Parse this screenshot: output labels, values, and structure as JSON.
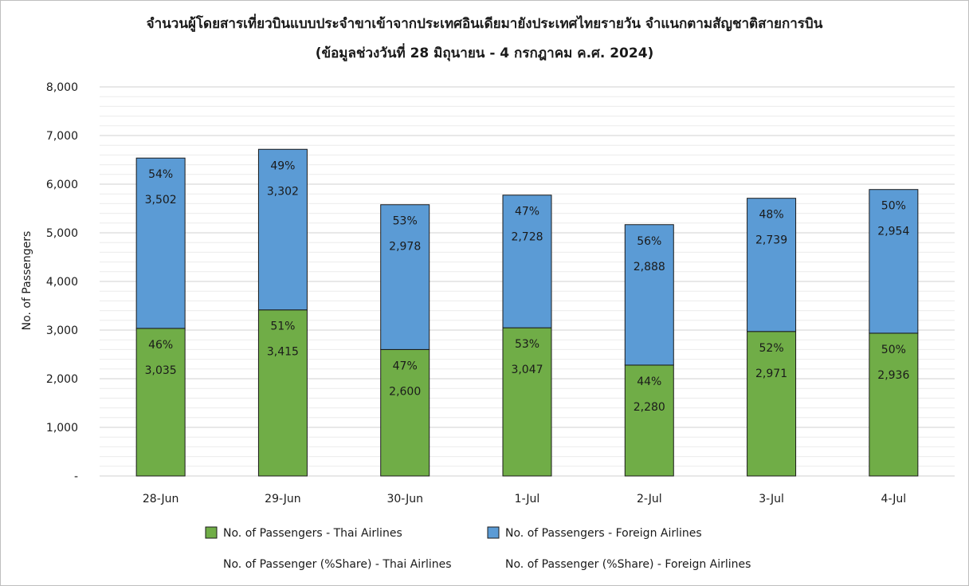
{
  "chart_data": {
    "type": "bar",
    "stacked": true,
    "title": "จำนวนผู้โดยสารเที่ยวบินแบบประจำขาเข้าจากประเทศอินเดียมายังประเทศไทยรายวัน  จำแนกตามสัญชาติสายการบิน",
    "subtitle": "(ข้อมูลช่วงวันที่ 28 มิถุนายน - 4 กรกฎาคม ค.ศ. 2024)",
    "ylabel": "No. of Passengers",
    "xlabel": "",
    "ylim": [
      0,
      8000
    ],
    "yticks": [
      0,
      1000,
      2000,
      3000,
      4000,
      5000,
      6000,
      7000,
      8000
    ],
    "ytick_labels": [
      "-",
      "1,000",
      "2,000",
      "3,000",
      "4,000",
      "5,000",
      "6,000",
      "7,000",
      "8,000"
    ],
    "grid": true,
    "categories": [
      "28-Jun",
      "29-Jun",
      "30-Jun",
      "1-Jul",
      "2-Jul",
      "3-Jul",
      "4-Jul"
    ],
    "series": [
      {
        "name": "No. of Passengers - Thai Airlines",
        "color": "#70ad47",
        "values": [
          3035,
          3415,
          2600,
          3047,
          2280,
          2971,
          2936
        ],
        "value_labels": [
          "3,035",
          "3,415",
          "2,600",
          "3,047",
          "2,280",
          "2,971",
          "2,936"
        ],
        "share_labels": [
          "46%",
          "51%",
          "47%",
          "53%",
          "44%",
          "52%",
          "50%"
        ]
      },
      {
        "name": "No. of Passengers - Foreign Airlines",
        "color": "#5b9bd5",
        "values": [
          3502,
          3302,
          2978,
          2728,
          2888,
          2739,
          2954
        ],
        "value_labels": [
          "3,502",
          "3,302",
          "2,978",
          "2,728",
          "2,888",
          "2,739",
          "2,954"
        ],
        "share_labels": [
          "54%",
          "49%",
          "53%",
          "47%",
          "56%",
          "48%",
          "50%"
        ]
      }
    ],
    "legend": {
      "placement": "bottom",
      "items": [
        {
          "label": "No. of Passengers - Thai Airlines",
          "color": "#70ad47",
          "swatch": true
        },
        {
          "label": "No. of Passengers - Foreign Airlines",
          "color": "#5b9bd5",
          "swatch": true
        },
        {
          "label": "No. of Passenger (%Share) - Thai Airlines",
          "swatch": false
        },
        {
          "label": "No. of Passenger (%Share) - Foreign Airlines",
          "swatch": false
        }
      ]
    }
  }
}
